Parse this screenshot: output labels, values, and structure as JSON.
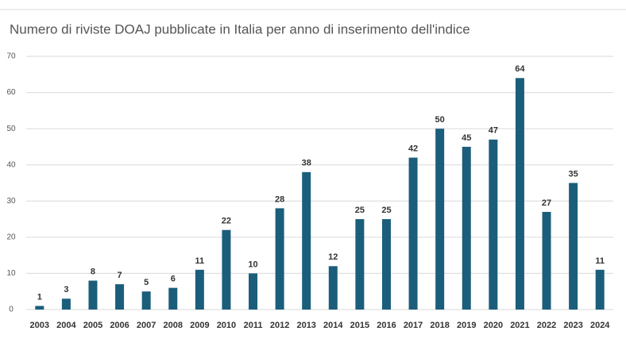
{
  "chart_data": {
    "type": "bar",
    "title": "Numero di riviste DOAJ pubblicate in Italia per anno di inserimento dell'indice",
    "categories": [
      "2003",
      "2004",
      "2005",
      "2006",
      "2007",
      "2008",
      "2009",
      "2010",
      "2011",
      "2012",
      "2013",
      "2014",
      "2015",
      "2016",
      "2017",
      "2018",
      "2019",
      "2020",
      "2021",
      "2022",
      "2023",
      "2024"
    ],
    "values": [
      1,
      3,
      8,
      7,
      5,
      6,
      11,
      22,
      10,
      28,
      38,
      12,
      25,
      25,
      42,
      50,
      45,
      47,
      64,
      27,
      35,
      11
    ],
    "color": "#1b5e7b",
    "ylim": [
      0,
      70
    ],
    "yticks": [
      0,
      10,
      20,
      30,
      40,
      50,
      60,
      70
    ],
    "grid": true
  }
}
